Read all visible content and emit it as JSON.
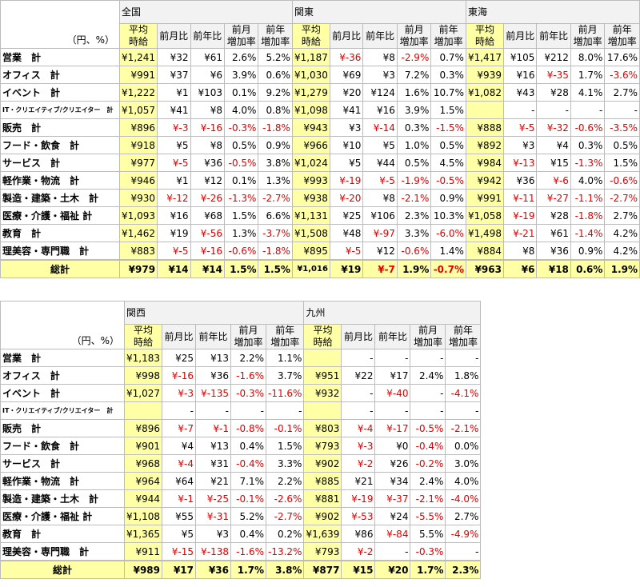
{
  "top": {
    "unit_label": "（円、%）",
    "headers": {
      "wage": "平均 時給",
      "mom": "前月比",
      "yoy": "前年比",
      "mom_rate": "前月 増加率",
      "yoy_rate": "前年 増加率"
    },
    "regions": [
      "全国",
      "関東",
      "東海"
    ],
    "rows": [
      {
        "category": "営業　計",
        "cells": [
          [
            "¥1,241",
            "¥32",
            "¥61",
            "2.6%",
            "5.2%"
          ],
          [
            "¥1,187",
            "¥-36",
            "¥8",
            "-2.9%",
            "0.7%"
          ],
          [
            "¥1,417",
            "¥105",
            "¥212",
            "8.0%",
            "17.6%"
          ]
        ]
      },
      {
        "category": "オフィス　計",
        "cells": [
          [
            "¥991",
            "¥37",
            "¥6",
            "3.9%",
            "0.6%"
          ],
          [
            "¥1,030",
            "¥69",
            "¥3",
            "7.2%",
            "0.3%"
          ],
          [
            "¥939",
            "¥16",
            "¥-35",
            "1.7%",
            "-3.6%"
          ]
        ]
      },
      {
        "category": "イベント　計",
        "cells": [
          [
            "¥1,222",
            "¥1",
            "¥103",
            "0.1%",
            "9.2%"
          ],
          [
            "¥1,279",
            "¥20",
            "¥124",
            "1.6%",
            "10.7%"
          ],
          [
            "¥1,082",
            "¥43",
            "¥28",
            "4.1%",
            "2.7%"
          ]
        ]
      },
      {
        "category": "IT・クリエイティブ/クリエイター　計",
        "cells": [
          [
            "¥1,057",
            "¥41",
            "¥8",
            "4.0%",
            "0.8%"
          ],
          [
            "¥1,098",
            "¥41",
            "¥16",
            "3.9%",
            "1.5%"
          ],
          [
            "",
            "-",
            "-",
            "-",
            "-"
          ]
        ]
      },
      {
        "category": "販売　計",
        "cells": [
          [
            "¥896",
            "¥-3",
            "¥-16",
            "-0.3%",
            "-1.8%"
          ],
          [
            "¥943",
            "¥3",
            "¥-14",
            "0.3%",
            "-1.5%"
          ],
          [
            "¥888",
            "¥-5",
            "¥-32",
            "-0.6%",
            "-3.5%"
          ]
        ]
      },
      {
        "category": "フード・飲食　計",
        "cells": [
          [
            "¥918",
            "¥5",
            "¥8",
            "0.5%",
            "0.9%"
          ],
          [
            "¥966",
            "¥10",
            "¥5",
            "1.0%",
            "0.5%"
          ],
          [
            "¥892",
            "¥3",
            "¥4",
            "0.3%",
            "0.5%"
          ]
        ]
      },
      {
        "category": "サービス　計",
        "cells": [
          [
            "¥977",
            "¥-5",
            "¥36",
            "-0.5%",
            "3.8%"
          ],
          [
            "¥1,024",
            "¥5",
            "¥44",
            "0.5%",
            "4.5%"
          ],
          [
            "¥984",
            "¥-13",
            "¥15",
            "-1.3%",
            "1.5%"
          ]
        ]
      },
      {
        "category": "軽作業・物流　計",
        "cells": [
          [
            "¥946",
            "¥1",
            "¥12",
            "0.1%",
            "1.3%"
          ],
          [
            "¥993",
            "¥-19",
            "¥-5",
            "-1.9%",
            "-0.5%"
          ],
          [
            "¥942",
            "¥36",
            "¥-6",
            "4.0%",
            "-0.6%"
          ]
        ]
      },
      {
        "category": "製造・建築・土木　計",
        "cells": [
          [
            "¥930",
            "¥-12",
            "¥-26",
            "-1.3%",
            "-2.7%"
          ],
          [
            "¥938",
            "¥-20",
            "¥8",
            "-2.1%",
            "0.9%"
          ],
          [
            "¥991",
            "¥-11",
            "¥-27",
            "-1.1%",
            "-2.7%"
          ]
        ]
      },
      {
        "category": "医療・介護・福祉 計",
        "cells": [
          [
            "¥1,093",
            "¥16",
            "¥68",
            "1.5%",
            "6.6%"
          ],
          [
            "¥1,131",
            "¥25",
            "¥106",
            "2.3%",
            "10.3%"
          ],
          [
            "¥1,058",
            "¥-19",
            "¥28",
            "-1.8%",
            "2.7%"
          ]
        ]
      },
      {
        "category": "教育　計",
        "cells": [
          [
            "¥1,462",
            "¥19",
            "¥-56",
            "1.3%",
            "-3.7%"
          ],
          [
            "¥1,508",
            "¥48",
            "¥-97",
            "3.3%",
            "-6.0%"
          ],
          [
            "¥1,498",
            "¥-21",
            "¥61",
            "-1.4%",
            "4.2%"
          ]
        ]
      },
      {
        "category": "理美容・専門職　計",
        "cells": [
          [
            "¥883",
            "¥-5",
            "¥-16",
            "-0.6%",
            "-1.8%"
          ],
          [
            "¥895",
            "¥-5",
            "¥12",
            "-0.6%",
            "1.4%"
          ],
          [
            "¥884",
            "¥8",
            "¥36",
            "0.9%",
            "4.2%"
          ]
        ]
      }
    ],
    "total": {
      "category": "総計",
      "cells": [
        [
          "¥979",
          "¥14",
          "¥14",
          "1.5%",
          "1.5%"
        ],
        [
          "¥1,016",
          "¥19",
          "¥-7",
          "1.9%",
          "-0.7%"
        ],
        [
          "¥963",
          "¥6",
          "¥18",
          "0.6%",
          "1.9%"
        ]
      ]
    }
  },
  "bottom": {
    "unit_label": "（円、%）",
    "headers": {
      "wage": "平均 時給",
      "mom": "前月比",
      "yoy": "前年比",
      "mom_rate": "前月 増加率",
      "yoy_rate": "前年 増加率"
    },
    "regions": [
      "関西",
      "九州"
    ],
    "rows": [
      {
        "category": "営業　計",
        "cells": [
          [
            "¥1,183",
            "¥25",
            "¥13",
            "2.2%",
            "1.1%"
          ],
          [
            "",
            "-",
            "-",
            "-",
            "-"
          ]
        ]
      },
      {
        "category": "オフィス　計",
        "cells": [
          [
            "¥998",
            "¥-16",
            "¥36",
            "-1.6%",
            "3.7%"
          ],
          [
            "¥951",
            "¥22",
            "¥17",
            "2.4%",
            "1.8%"
          ]
        ]
      },
      {
        "category": "イベント　計",
        "cells": [
          [
            "¥1,027",
            "¥-3",
            "¥-135",
            "-0.3%",
            "-11.6%"
          ],
          [
            "¥932",
            "-",
            "¥-40",
            "-",
            "-4.1%"
          ]
        ]
      },
      {
        "category": "IT・クリエイティブ/クリエイター　計",
        "cells": [
          [
            "",
            "-",
            "-",
            "-",
            "-"
          ],
          [
            "",
            "-",
            "-",
            "-",
            "-"
          ]
        ]
      },
      {
        "category": "販売　計",
        "cells": [
          [
            "¥896",
            "¥-7",
            "¥-1",
            "-0.8%",
            "-0.1%"
          ],
          [
            "¥803",
            "¥-4",
            "¥-17",
            "-0.5%",
            "-2.1%"
          ]
        ]
      },
      {
        "category": "フード・飲食　計",
        "cells": [
          [
            "¥901",
            "¥4",
            "¥13",
            "0.4%",
            "1.5%"
          ],
          [
            "¥793",
            "¥-3",
            "¥0",
            "-0.4%",
            "0.0%"
          ]
        ]
      },
      {
        "category": "サービス　計",
        "cells": [
          [
            "¥968",
            "¥-4",
            "¥31",
            "-0.4%",
            "3.3%"
          ],
          [
            "¥902",
            "¥-2",
            "¥26",
            "-0.2%",
            "3.0%"
          ]
        ]
      },
      {
        "category": "軽作業・物流　計",
        "cells": [
          [
            "¥964",
            "¥64",
            "¥21",
            "7.1%",
            "2.2%"
          ],
          [
            "¥885",
            "¥21",
            "¥34",
            "2.4%",
            "4.0%"
          ]
        ]
      },
      {
        "category": "製造・建築・土木　計",
        "cells": [
          [
            "¥944",
            "¥-1",
            "¥-25",
            "-0.1%",
            "-2.6%"
          ],
          [
            "¥881",
            "¥-19",
            "¥-37",
            "-2.1%",
            "-4.0%"
          ]
        ]
      },
      {
        "category": "医療・介護・福祉 計",
        "cells": [
          [
            "¥1,108",
            "¥55",
            "¥-31",
            "5.2%",
            "-2.7%"
          ],
          [
            "¥902",
            "¥-53",
            "¥24",
            "-5.5%",
            "2.7%"
          ]
        ]
      },
      {
        "category": "教育　計",
        "cells": [
          [
            "¥1,365",
            "¥5",
            "¥3",
            "0.4%",
            "0.2%"
          ],
          [
            "¥1,639",
            "¥86",
            "¥-84",
            "5.5%",
            "-4.9%"
          ]
        ]
      },
      {
        "category": "理美容・専門職　計",
        "cells": [
          [
            "¥911",
            "¥-15",
            "¥-138",
            "-1.6%",
            "-13.2%"
          ],
          [
            "¥793",
            "¥-2",
            "-",
            "-0.3%",
            "-"
          ]
        ]
      }
    ],
    "total": {
      "category": "総計",
      "cells": [
        [
          "¥989",
          "¥17",
          "¥36",
          "1.7%",
          "3.8%"
        ],
        [
          "¥877",
          "¥15",
          "¥20",
          "1.7%",
          "2.3%"
        ]
      ]
    }
  }
}
